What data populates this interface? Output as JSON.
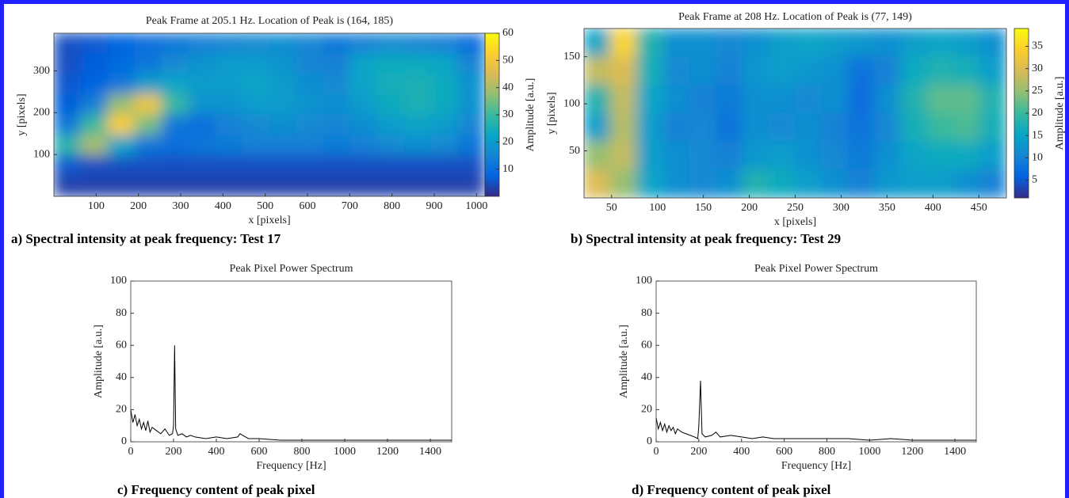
{
  "chart_data": [
    {
      "type": "heatmap",
      "title": "Peak Frame at 205.1 Hz. Location of Peak is (164, 185)",
      "xlabel": "x [pixels]",
      "ylabel": "y [pixels]",
      "colorbar_label": "Amplitude [a.u.]",
      "caption": "a) Spectral intensity at peak frequency: Test 17",
      "xlim": [
        0,
        1020
      ],
      "ylim": [
        0,
        390
      ],
      "clim": [
        0,
        60
      ],
      "xticks": [
        100,
        200,
        300,
        400,
        500,
        600,
        700,
        800,
        900,
        1000
      ],
      "yticks": [
        100,
        200,
        300
      ],
      "cticks": [
        10,
        20,
        30,
        40,
        50,
        60
      ],
      "colormap": [
        "#352a87",
        "#0363e1",
        "#1485d4",
        "#06a7c6",
        "#38b99e",
        "#92bf73",
        "#d9ba56",
        "#fcce2e",
        "#f9fb0e"
      ],
      "z": [
        [
          5,
          6,
          8,
          10,
          12,
          14,
          15,
          16,
          17,
          15,
          12,
          14,
          16,
          15,
          14,
          10
        ],
        [
          5,
          7,
          9,
          12,
          16,
          18,
          20,
          20,
          18,
          15,
          14,
          22,
          24,
          24,
          22,
          15
        ],
        [
          6,
          8,
          12,
          20,
          22,
          20,
          20,
          22,
          20,
          17,
          16,
          22,
          25,
          26,
          24,
          18
        ],
        [
          7,
          14,
          38,
          50,
          30,
          18,
          18,
          20,
          20,
          18,
          17,
          20,
          24,
          26,
          24,
          18
        ],
        [
          12,
          30,
          52,
          35,
          12,
          10,
          14,
          16,
          17,
          16,
          15,
          17,
          20,
          22,
          20,
          15
        ],
        [
          28,
          40,
          22,
          12,
          10,
          12,
          13,
          14,
          14,
          14,
          13,
          14,
          16,
          17,
          16,
          12
        ],
        [
          6,
          5,
          5,
          5,
          5,
          5,
          5,
          5,
          5,
          5,
          5,
          5,
          5,
          5,
          5,
          5
        ],
        [
          3,
          3,
          3,
          3,
          3,
          3,
          3,
          3,
          3,
          3,
          3,
          3,
          3,
          3,
          3,
          3
        ]
      ]
    },
    {
      "type": "heatmap",
      "title": "Peak Frame at 208 Hz. Location of Peak is (77, 149)",
      "xlabel": "x [pixels]",
      "ylabel": "y [pixels]",
      "colorbar_label": "Amplitude [a.u.]",
      "caption": "b) Spectral intensity at peak frequency: Test 29",
      "xlim": [
        20,
        480
      ],
      "ylim": [
        0,
        180
      ],
      "clim": [
        1,
        39
      ],
      "xticks": [
        50,
        100,
        150,
        200,
        250,
        300,
        350,
        400,
        450
      ],
      "yticks": [
        50,
        100,
        150
      ],
      "cticks": [
        5,
        10,
        15,
        20,
        25,
        30,
        35
      ],
      "colormap": [
        "#352a87",
        "#0363e1",
        "#1485d4",
        "#06a7c6",
        "#38b99e",
        "#92bf73",
        "#d9ba56",
        "#fcce2e",
        "#f9fb0e"
      ],
      "z": [
        [
          15,
          35,
          18,
          12,
          12,
          11,
          12,
          14,
          15,
          14,
          13,
          12,
          14,
          15,
          14,
          12
        ],
        [
          28,
          30,
          17,
          11,
          12,
          10,
          13,
          14,
          13,
          12,
          8,
          10,
          16,
          18,
          17,
          14
        ],
        [
          18,
          28,
          15,
          12,
          10,
          9,
          12,
          12,
          11,
          12,
          7,
          12,
          18,
          22,
          22,
          18
        ],
        [
          14,
          27,
          14,
          10,
          11,
          8,
          12,
          11,
          12,
          10,
          8,
          11,
          17,
          20,
          21,
          17
        ],
        [
          25,
          28,
          14,
          12,
          11,
          10,
          13,
          14,
          12,
          11,
          9,
          12,
          15,
          16,
          16,
          14
        ],
        [
          30,
          25,
          15,
          12,
          11,
          12,
          18,
          16,
          14,
          12,
          10,
          13,
          14,
          14,
          12,
          10
        ]
      ]
    },
    {
      "type": "line",
      "title": "Peak Pixel Power Spectrum",
      "xlabel": "Frequency [Hz]",
      "ylabel": "Amplitude [a.u.]",
      "caption": "c) Frequency content of peak pixel",
      "color": "#000000",
      "xlim": [
        0,
        1500
      ],
      "ylim": [
        0,
        100
      ],
      "xticks": [
        0,
        200,
        400,
        600,
        800,
        1000,
        1200,
        1400
      ],
      "yticks": [
        0,
        20,
        40,
        60,
        80,
        100
      ],
      "x": [
        0,
        10,
        20,
        30,
        40,
        50,
        60,
        70,
        80,
        90,
        100,
        120,
        140,
        160,
        180,
        195,
        200,
        205,
        210,
        220,
        240,
        260,
        280,
        300,
        350,
        400,
        450,
        500,
        510,
        550,
        600,
        700,
        800,
        900,
        1000,
        1100,
        1200,
        1300,
        1400,
        1500
      ],
      "values": [
        20,
        12,
        17,
        10,
        14,
        8,
        12,
        7,
        13,
        6,
        9,
        7,
        5,
        8,
        4,
        5,
        10,
        60,
        8,
        4,
        5,
        3,
        4,
        3,
        2,
        3,
        2,
        3,
        5,
        2,
        2,
        1,
        1,
        1,
        1,
        1,
        1,
        1,
        1,
        1
      ]
    },
    {
      "type": "line",
      "title": "Peak Pixel Power Spectrum",
      "xlabel": "Frequency [Hz]",
      "ylabel": "Amplitude [a.u.]",
      "caption": "d) Frequency content of peak pixel",
      "color": "#000000",
      "xlim": [
        0,
        1500
      ],
      "ylim": [
        0,
        100
      ],
      "xticks": [
        0,
        200,
        400,
        600,
        800,
        1000,
        1200,
        1400
      ],
      "yticks": [
        0,
        20,
        40,
        60,
        80,
        100
      ],
      "x": [
        0,
        10,
        20,
        30,
        40,
        50,
        60,
        70,
        80,
        90,
        100,
        120,
        140,
        160,
        180,
        195,
        200,
        208,
        215,
        230,
        260,
        280,
        300,
        350,
        400,
        450,
        500,
        550,
        600,
        700,
        800,
        900,
        1000,
        1100,
        1200,
        1300,
        1400,
        1500
      ],
      "values": [
        15,
        8,
        12,
        7,
        11,
        6,
        10,
        7,
        9,
        5,
        8,
        6,
        5,
        4,
        3,
        2,
        10,
        38,
        5,
        3,
        4,
        6,
        3,
        4,
        3,
        2,
        3,
        2,
        2,
        2,
        2,
        2,
        1,
        2,
        1,
        1,
        1,
        1
      ]
    }
  ]
}
